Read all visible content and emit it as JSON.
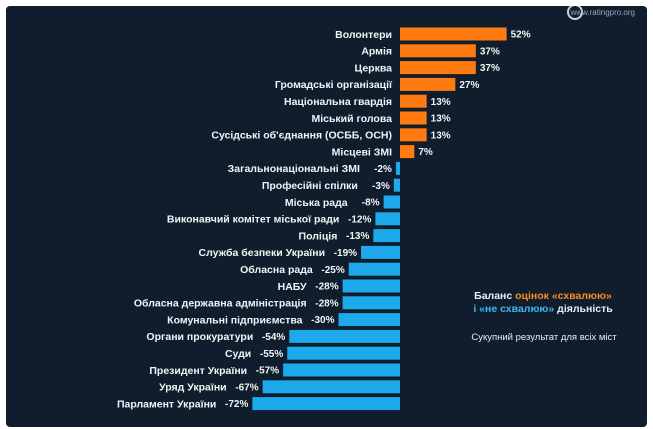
{
  "source": "www.ratingpro.org",
  "note": {
    "line1_prefix": "Баланс ",
    "line1_highlight": "оцінок «схвалюю»",
    "line2_highlight": "і «не схвалюю»",
    "line2_suffix": " діяльність",
    "subtitle": "Сукупний результат для всіх міст"
  },
  "colors": {
    "positive": "#ff7a10",
    "negative": "#1ea9ec",
    "background": "#0f1d2c",
    "text": "#f2f5f8"
  },
  "chart_data": {
    "type": "bar",
    "orientation": "horizontal",
    "categories": [
      "Волонтери",
      "Армія",
      "Церква",
      "Громадські організації",
      "Національна гвардія",
      "Міський голова",
      "Сусідські об'єднання (ОСББ, ОСН)",
      "Місцеві ЗМІ",
      "Загальнонаціональні ЗМІ",
      "Професійні спілки",
      "Міська рада",
      "Виконавчий комітет міської ради",
      "Поліція",
      "Служба безпеки України",
      "Обласна рада",
      "НАБУ",
      "Обласна державна адміністрація",
      "Комунальні підприємства",
      "Органи прокуратури",
      "Суди",
      "Президент України",
      "Уряд України",
      "Парламент України"
    ],
    "values": [
      52,
      37,
      37,
      27,
      13,
      13,
      13,
      7,
      -2,
      -3,
      -8,
      -12,
      -13,
      -19,
      -25,
      -28,
      -28,
      -30,
      -54,
      -55,
      -57,
      -67,
      -72
    ],
    "value_labels": [
      "52%",
      "37%",
      "37%",
      "27%",
      "13%",
      "13%",
      "13%",
      "7%",
      "-2%",
      "-3%",
      "-8%",
      "-12%",
      "-13%",
      "-19%",
      "-25%",
      "-28%",
      "-28%",
      "-30%",
      "-54%",
      "-55%",
      "-57%",
      "-67%",
      "-72%"
    ],
    "xlim": [
      -72,
      52
    ],
    "grid": false
  }
}
